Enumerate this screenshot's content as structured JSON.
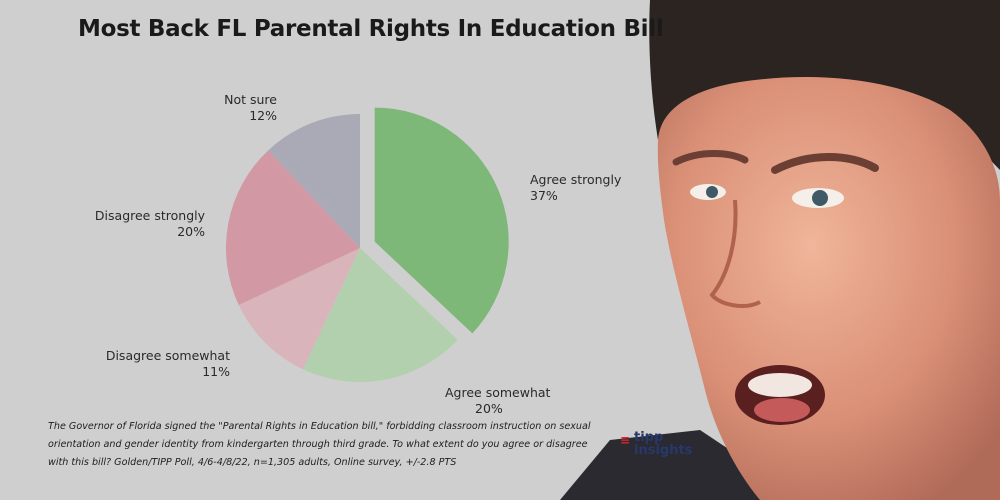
{
  "title": "Most Back FL Parental Rights In Education Bill",
  "chart_data": {
    "type": "pie",
    "title": "Most Back FL Parental Rights In Education Bill",
    "slices": [
      {
        "label": "Agree strongly",
        "value": 37,
        "value_label": "37%",
        "color": "#7db878",
        "exploded": true
      },
      {
        "label": "Agree somewhat",
        "value": 20,
        "value_label": "20%",
        "color": "#b3d0ae",
        "exploded": false
      },
      {
        "label": "Disagree somewhat",
        "value": 11,
        "value_label": "11%",
        "color": "#d9b4bb",
        "exploded": false
      },
      {
        "label": "Disagree strongly",
        "value": 20,
        "value_label": "20%",
        "color": "#d298a3",
        "exploded": false
      },
      {
        "label": "Not sure",
        "value": 12,
        "value_label": "12%",
        "color": "#aaaab6",
        "exploded": false
      }
    ],
    "start_angle": "12 o'clock",
    "direction": "clockwise"
  },
  "caption": "The Governor of Florida signed the \"Parental Rights in Education bill,\" forbidding classroom instruction on sexual orientation and gender identity from kindergarten through third grade. To what extent do you agree or disagree with this bill? Golden/TIPP Poll, 4/6-4/8/22, n=1,305 adults, Online survey, +/-2.8 PTS",
  "logo": {
    "line1": "tipp",
    "line2": "insights"
  },
  "colors": {
    "background": "#cfcfcf",
    "title": "#1a1a1a",
    "logo": "#27386b",
    "logo_accent": "#d9262b"
  }
}
